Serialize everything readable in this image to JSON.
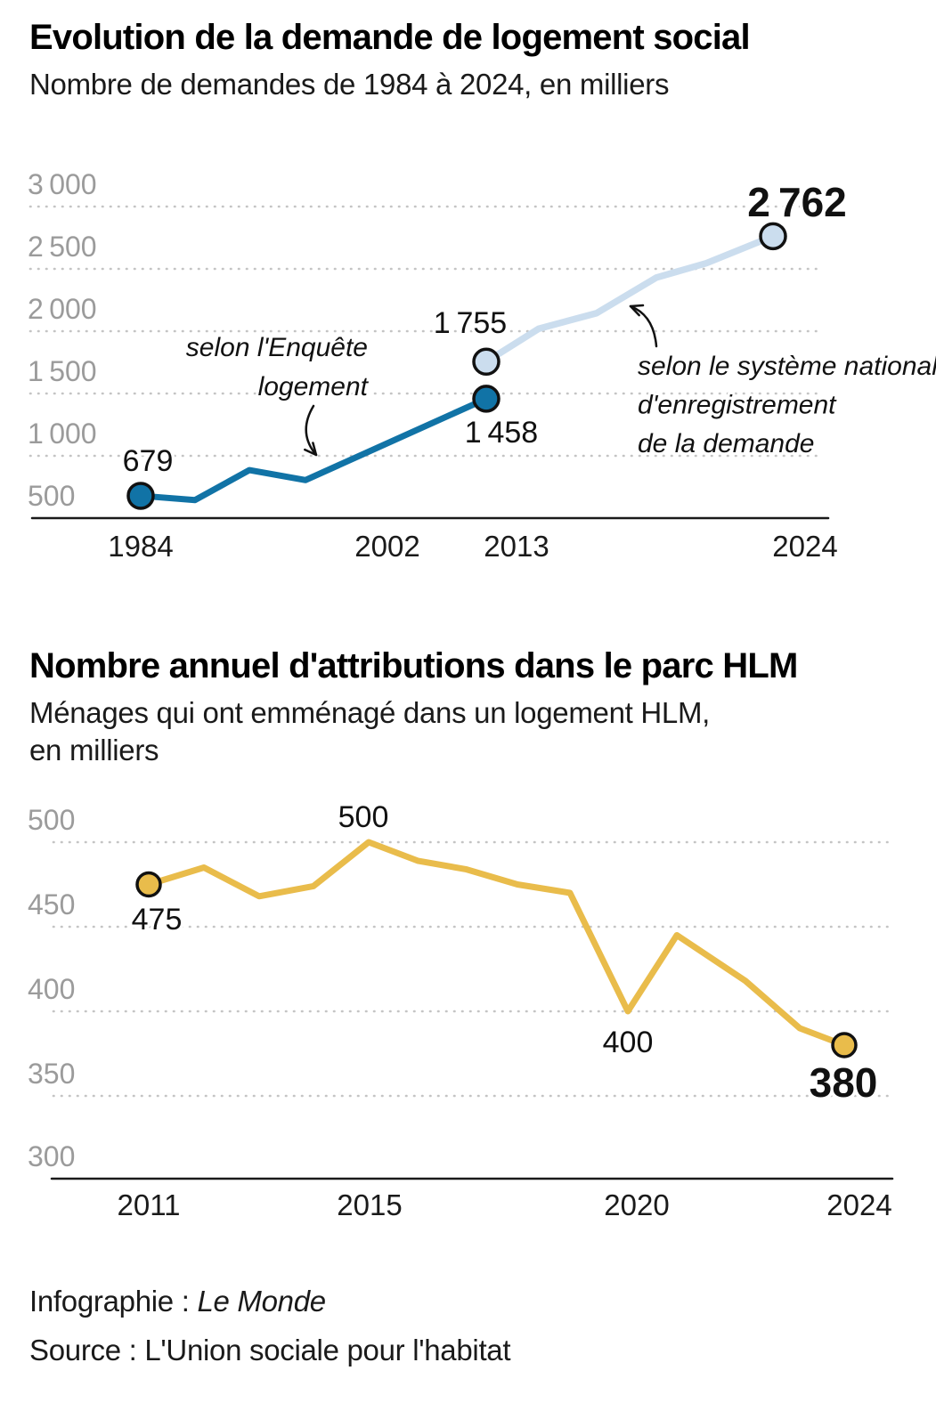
{
  "chart_data": [
    {
      "type": "line",
      "title": "Evolution de la demande de logement social",
      "subtitle_lines": [
        "Nombre de demandes de 1984 à 2024, en milliers"
      ],
      "unit": "milliers",
      "ylim": [
        500,
        3000
      ],
      "grid": "dotted-horizontal",
      "y_ticks": [
        "3 000",
        "2 500",
        "2 000",
        "1 500",
        "1 000",
        "500"
      ],
      "x_ticks": [
        "1984",
        "2002",
        "2013",
        "2024"
      ],
      "series": [
        {
          "name": "selon l'Enquête logement",
          "color": "#1173a6",
          "points": [
            {
              "year": 1984,
              "value": 679
            },
            {
              "year": 1988,
              "value": 645
            },
            {
              "year": 1992,
              "value": 885
            },
            {
              "year": 1996,
              "value": 805
            },
            {
              "year": 2013,
              "value": 1458
            }
          ],
          "labeled_points": [
            {
              "year": 1984,
              "label": "679"
            },
            {
              "year": 2013,
              "label": "1 458"
            }
          ]
        },
        {
          "name": "selon le système national d'enregistrement de la demande",
          "color": "#cbddee",
          "points": [
            {
              "year": 2013,
              "value": 1755
            },
            {
              "year": 2015,
              "value": 2020
            },
            {
              "year": 2017,
              "value": 2145
            },
            {
              "year": 2019,
              "value": 2430
            },
            {
              "year": 2021,
              "value": 2545
            },
            {
              "year": 2024,
              "value": 2762
            }
          ],
          "labeled_points": [
            {
              "year": 2013,
              "label": "1 755"
            },
            {
              "year": 2024,
              "label": "2 762"
            }
          ]
        }
      ],
      "annotations": [
        {
          "lines": [
            "selon l'Enquête",
            "logement"
          ]
        },
        {
          "lines": [
            "selon le système national",
            "d'enregistrement",
            "de la demande"
          ]
        }
      ]
    },
    {
      "type": "line",
      "title": "Nombre annuel d'attributions dans le parc HLM",
      "subtitle_lines": [
        "Ménages qui ont emménagé dans un logement HLM,",
        "en milliers"
      ],
      "unit": "milliers",
      "ylim": [
        300,
        500
      ],
      "grid": "dotted-horizontal",
      "y_ticks": [
        "500",
        "450",
        "400",
        "350",
        "300"
      ],
      "x_ticks": [
        "2011",
        "2015",
        "2020",
        "2024"
      ],
      "series": [
        {
          "name": "Attributions annuelles dans le parc HLM",
          "color": "#e9bc4b",
          "points": [
            {
              "year": 2011,
              "value": 475
            },
            {
              "year": 2012,
              "value": 485
            },
            {
              "year": 2013,
              "value": 468
            },
            {
              "year": 2014,
              "value": 474
            },
            {
              "year": 2015,
              "value": 500
            },
            {
              "year": 2016,
              "value": 489
            },
            {
              "year": 2017,
              "value": 484
            },
            {
              "year": 2018,
              "value": 475
            },
            {
              "year": 2019,
              "value": 470
            },
            {
              "year": 2020,
              "value": 400
            },
            {
              "year": 2021,
              "value": 445
            },
            {
              "year": 2022,
              "value": 418
            },
            {
              "year": 2023,
              "value": 390
            },
            {
              "year": 2024,
              "value": 380
            }
          ],
          "labeled_points": [
            {
              "year": 2011,
              "label": "475"
            },
            {
              "year": 2015,
              "label": "500"
            },
            {
              "year": 2020,
              "label": "400"
            },
            {
              "year": 2024,
              "label": "380"
            }
          ]
        }
      ],
      "annotations": []
    }
  ],
  "footer": {
    "credit_prefix": "Infographie : ",
    "credit_name": "Le Monde",
    "source": "Source : L'Union sociale pour l'habitat"
  }
}
